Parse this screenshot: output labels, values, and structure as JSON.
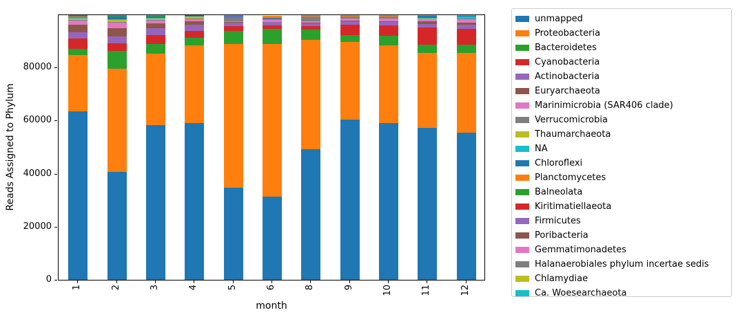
{
  "chart_data": {
    "type": "bar",
    "stacked": true,
    "title": "",
    "xlabel": "month",
    "ylabel": "Reads Assigned to Phylum",
    "ylim": [
      0,
      100000
    ],
    "grid": false,
    "legend_position": "outside-right",
    "y_ticks": [
      0,
      20000,
      40000,
      60000,
      80000
    ],
    "y_tick_labels": [
      "0",
      "20000",
      "40000",
      "60000",
      "80000"
    ],
    "categories": [
      "1",
      "2",
      "3",
      "4",
      "5",
      "6",
      "8",
      "9",
      "10",
      "11",
      "12"
    ],
    "series": [
      {
        "name": "unmapped",
        "color": "#1f77b4",
        "values": [
          63400,
          40650,
          58300,
          59200,
          34750,
          31250,
          49300,
          60550,
          59000,
          57250,
          55450
        ]
      },
      {
        "name": "Proteobacteria",
        "color": "#ff7f0e",
        "values": [
          21300,
          39000,
          27050,
          29200,
          54150,
          57650,
          41300,
          29250,
          29500,
          28150,
          30000
        ]
      },
      {
        "name": "Bacteroidetes",
        "color": "#2ca02c",
        "values": [
          2300,
          6500,
          3500,
          2900,
          4800,
          5600,
          3800,
          2700,
          3500,
          3200,
          3200
        ]
      },
      {
        "name": "Cyanobacteria",
        "color": "#d62728",
        "values": [
          3880,
          2850,
          3500,
          2600,
          1900,
          1450,
          1400,
          3900,
          3900,
          6500,
          6000
        ]
      },
      {
        "name": "Actinobacteria",
        "color": "#9467bd",
        "values": [
          2330,
          2600,
          2450,
          2100,
          1400,
          1200,
          1000,
          1300,
          1300,
          1400,
          1400
        ]
      },
      {
        "name": "Euryarchaeota",
        "color": "#8c564b",
        "values": [
          2850,
          3300,
          1900,
          1550,
          200,
          100,
          150,
          150,
          200,
          800,
          800
        ]
      },
      {
        "name": "Marinimicrobia (SAR406 clade)",
        "color": "#e377c2",
        "values": [
          1800,
          2000,
          950,
          780,
          300,
          700,
          500,
          780,
          1200,
          900,
          1400
        ]
      },
      {
        "name": "Verrucomicrobia",
        "color": "#7f7f7f",
        "values": [
          150,
          150,
          200,
          200,
          1500,
          500,
          1800,
          800,
          600,
          100,
          150
        ]
      },
      {
        "name": "Thaumarchaeota",
        "color": "#bcbd22",
        "values": [
          600,
          1000,
          650,
          780,
          50,
          50,
          50,
          50,
          50,
          100,
          100
        ]
      },
      {
        "name": "NA",
        "color": "#17becf",
        "values": [
          300,
          200,
          200,
          50,
          50,
          50,
          50,
          50,
          50,
          400,
          800
        ]
      },
      {
        "name": "Chloroflexi",
        "color": "#1f77b4",
        "values": [
          500,
          1000,
          550,
          50,
          50,
          50,
          50,
          50,
          50,
          600,
          100
        ]
      },
      {
        "name": "Planctomycetes",
        "color": "#ff7f0e",
        "values": [
          100,
          100,
          100,
          50,
          50,
          780,
          100,
          100,
          100,
          100,
          100
        ]
      },
      {
        "name": "Balneolata",
        "color": "#2ca02c",
        "values": [
          50,
          50,
          50,
          50,
          80,
          40,
          60,
          60,
          60,
          40,
          40
        ]
      },
      {
        "name": "Kiritimatiellaeota",
        "color": "#d62728",
        "values": [
          50,
          50,
          50,
          50,
          80,
          40,
          60,
          60,
          60,
          40,
          40
        ]
      },
      {
        "name": "Firmicutes",
        "color": "#9467bd",
        "values": [
          50,
          50,
          50,
          50,
          80,
          40,
          60,
          60,
          60,
          40,
          40
        ]
      },
      {
        "name": "Poribacteria",
        "color": "#8c564b",
        "values": [
          40,
          40,
          40,
          40,
          60,
          30,
          50,
          50,
          50,
          30,
          30
        ]
      },
      {
        "name": "Gemmatimonadetes",
        "color": "#e377c2",
        "values": [
          40,
          40,
          40,
          40,
          60,
          30,
          50,
          50,
          50,
          30,
          30
        ]
      },
      {
        "name": "Halanaerobiales phylum incertae sedis",
        "color": "#7f7f7f",
        "values": [
          30,
          30,
          30,
          30,
          40,
          20,
          40,
          40,
          40,
          30,
          30
        ]
      },
      {
        "name": "Chlamydiae",
        "color": "#bcbd22",
        "values": [
          30,
          30,
          30,
          30,
          40,
          20,
          40,
          40,
          40,
          30,
          30
        ]
      },
      {
        "name": "Ca. Woesearchaeota",
        "color": "#17becf",
        "values": [
          30,
          30,
          30,
          30,
          40,
          20,
          40,
          40,
          40,
          30,
          30
        ]
      }
    ]
  }
}
